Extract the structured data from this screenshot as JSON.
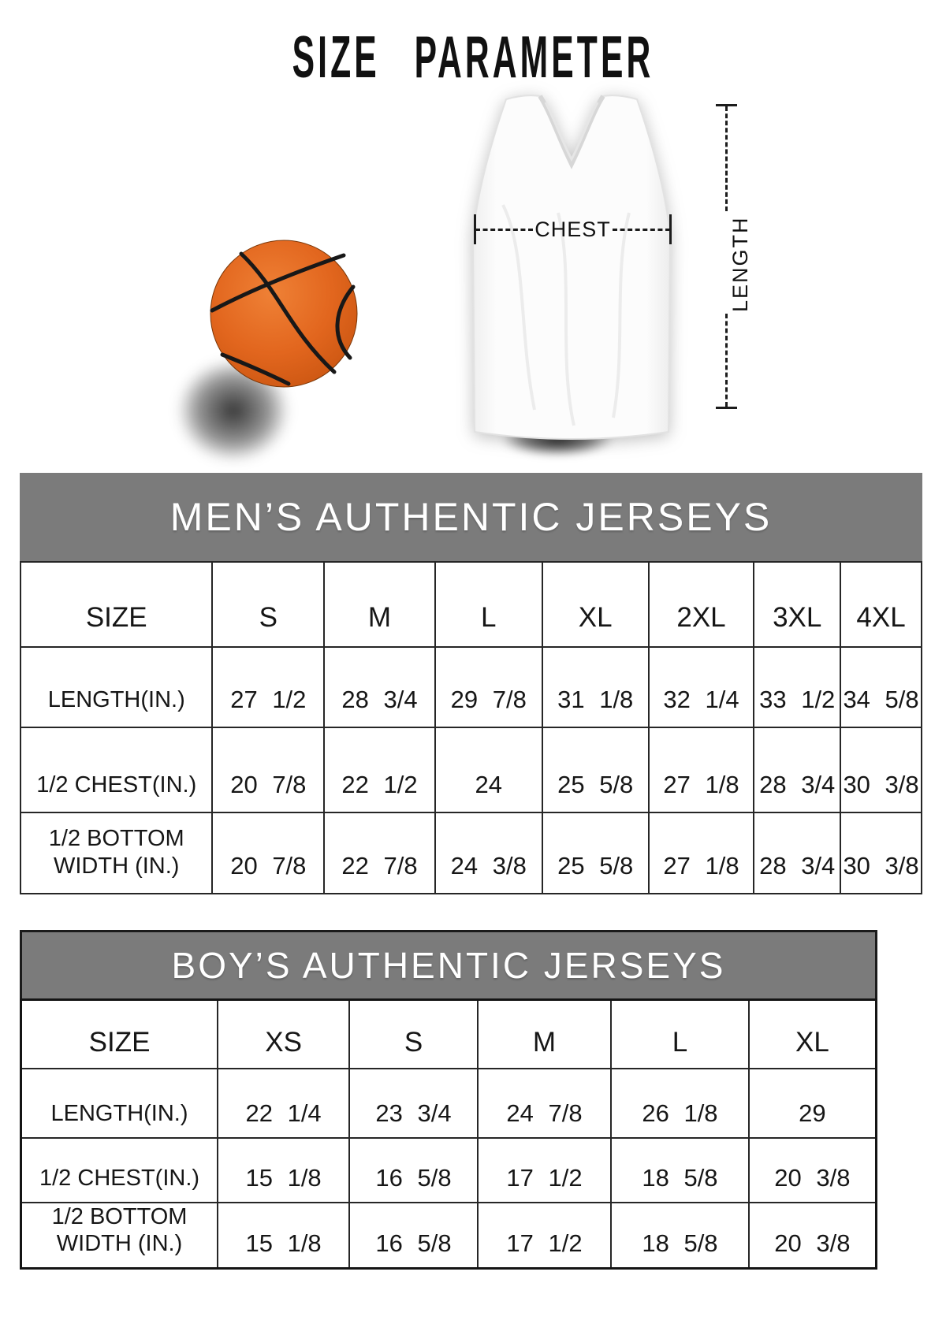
{
  "page_title": "SIZE PARAMETER",
  "diagram": {
    "chest_label": "CHEST",
    "length_label": "LENGTH"
  },
  "colors": {
    "table_header_bg": "#7b7b7b",
    "table_header_text": "#ffffff",
    "measure_line": "#1c1c1c",
    "basketball_orange": "#e2661e",
    "jersey_white": "#fcfcfc"
  },
  "tables": [
    {
      "title": "MEN’S AUTHENTIC JERSEYS",
      "size_header": "SIZE",
      "sizes": [
        "S",
        "M",
        "L",
        "XL",
        "2XL",
        "3XL",
        "4XL"
      ],
      "rows": [
        {
          "label": "LENGTH(IN.)",
          "values": [
            "27 1/2",
            "28 3/4",
            "29 7/8",
            "31 1/8",
            "32 1/4",
            "33 1/2",
            "34 5/8"
          ]
        },
        {
          "label": "1/2 CHEST(IN.)",
          "values": [
            "20 7/8",
            "22 1/2",
            "24",
            "25 5/8",
            "27 1/8",
            "28 3/4",
            "30 3/8"
          ]
        },
        {
          "label": "1/2 BOTTOM\nWIDTH (IN.)",
          "values": [
            "20 7/8",
            "22 7/8",
            "24 3/8",
            "25 5/8",
            "27 1/8",
            "28 3/4",
            "30 3/8"
          ]
        }
      ]
    },
    {
      "title": "BOY’S AUTHENTIC JERSEYS",
      "size_header": "SIZE",
      "sizes": [
        "XS",
        "S",
        "M",
        "L",
        "XL"
      ],
      "rows": [
        {
          "label": "LENGTH(IN.)",
          "values": [
            "22 1/4",
            "23 3/4",
            "24 7/8",
            "26 1/8",
            "29"
          ]
        },
        {
          "label": "1/2 CHEST(IN.)",
          "values": [
            "15 1/8",
            "16 5/8",
            "17 1/2",
            "18 5/8",
            "20 3/8"
          ]
        },
        {
          "label": "1/2 BOTTOM\nWIDTH (IN.)",
          "values": [
            "15 1/8",
            "16 5/8",
            "17 1/2",
            "18 5/8",
            "20 3/8"
          ]
        }
      ]
    }
  ]
}
